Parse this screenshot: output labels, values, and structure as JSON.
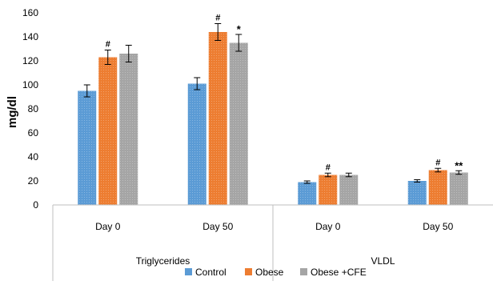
{
  "chart_data": {
    "type": "bar",
    "title": "",
    "xlabel": "",
    "ylabel": "mg/dl",
    "ylim": [
      0,
      160
    ],
    "yticks": [
      0,
      20,
      40,
      60,
      80,
      100,
      120,
      140,
      160
    ],
    "grid": false,
    "legend_position": "bottom",
    "groups": [
      {
        "name": "Triglycerides",
        "categories": [
          "Day 0",
          "Day 50"
        ]
      },
      {
        "name": "VLDL",
        "categories": [
          "Day 0",
          "Day 50"
        ]
      }
    ],
    "categories": [
      "Day 0",
      "Day 50",
      "Day 0",
      "Day 50"
    ],
    "series": [
      {
        "name": "Control",
        "color": "#5b9bd5",
        "values": [
          95,
          101,
          19,
          20
        ],
        "errors": [
          5,
          5,
          1,
          1
        ],
        "markers": [
          "",
          "",
          "",
          ""
        ]
      },
      {
        "name": "Obese",
        "color": "#ed7d31",
        "values": [
          123,
          144,
          25,
          29
        ],
        "errors": [
          6,
          7,
          1.5,
          1.5
        ],
        "markers": [
          "#",
          "#",
          "#",
          "#"
        ]
      },
      {
        "name": "Obese +CFE",
        "color": "#a5a5a5",
        "values": [
          126,
          135,
          25,
          27
        ],
        "errors": [
          7,
          7,
          1.5,
          1.5
        ],
        "markers": [
          "",
          "*",
          "",
          "**"
        ]
      }
    ]
  }
}
